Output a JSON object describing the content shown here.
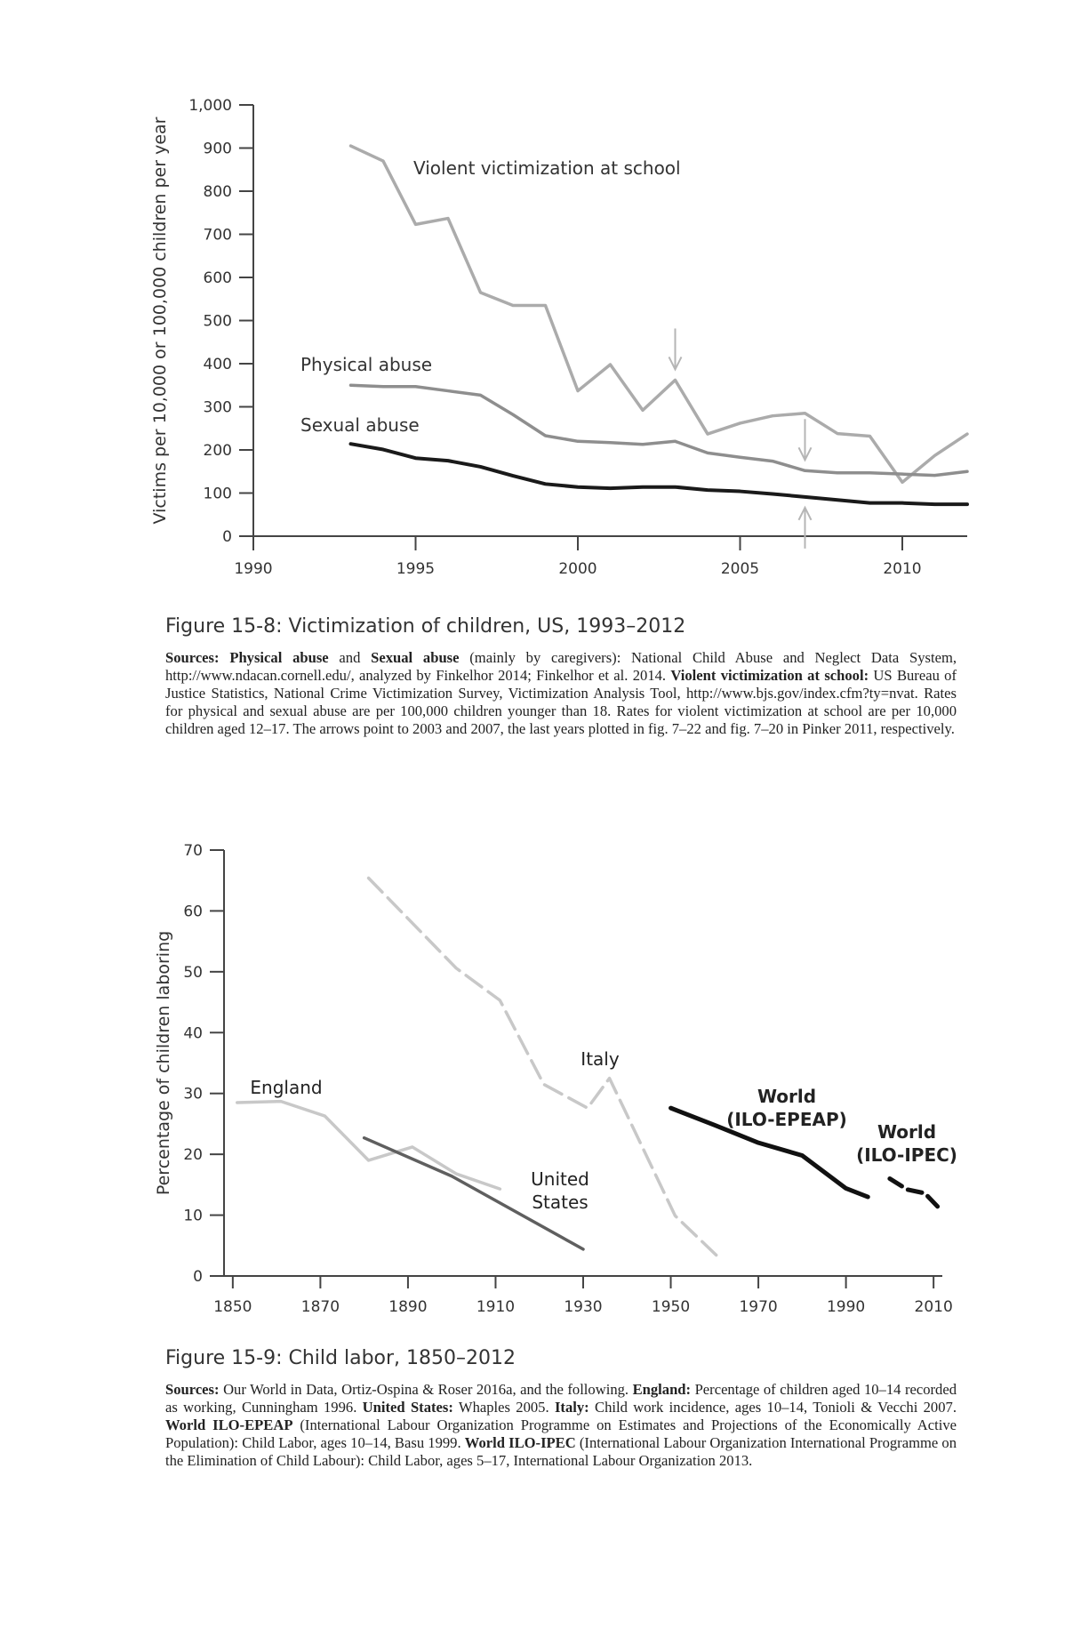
{
  "chart_data": [
    {
      "type": "line",
      "x": [
        1993,
        1994,
        1995,
        1996,
        1997,
        1998,
        1999,
        2000,
        2001,
        2002,
        2003,
        2004,
        2005,
        2006,
        2007,
        2008,
        2009,
        2010,
        2011,
        2012
      ],
      "series": [
        {
          "name": "Violent victimization at school",
          "color": "#ababab",
          "values": [
            905,
            870,
            723,
            737,
            565,
            535,
            535,
            337,
            398,
            292,
            362,
            237,
            262,
            279,
            285,
            238,
            232,
            125,
            187,
            237
          ]
        },
        {
          "name": "Physical abuse",
          "color": "#8e8e8e",
          "values": [
            350,
            347,
            347,
            337,
            327,
            282,
            233,
            220,
            217,
            213,
            220,
            193,
            183,
            174,
            152,
            147,
            147,
            144,
            141,
            150
          ]
        },
        {
          "name": "Sexual abuse",
          "color": "#1a1a1a",
          "values": [
            214,
            201,
            181,
            175,
            161,
            140,
            121,
            114,
            111,
            114,
            114,
            107,
            104,
            98,
            91,
            84,
            77,
            77,
            74,
            74
          ]
        }
      ],
      "arrows": [
        {
          "year": 2003,
          "direction": "down",
          "target": "Violent victimization at school"
        },
        {
          "year": 2007,
          "direction": "down",
          "target": "Physical abuse"
        },
        {
          "year": 2007,
          "direction": "up",
          "target": "Sexual abuse"
        }
      ],
      "xlim": [
        1990,
        2012
      ],
      "ylim": [
        0,
        1000
      ],
      "xticks": [
        1990,
        1995,
        2000,
        2005,
        2010
      ],
      "yticks": [
        0,
        100,
        200,
        300,
        400,
        500,
        600,
        700,
        800,
        900,
        1000
      ],
      "ytick_labels": [
        "0",
        "100",
        "200",
        "300",
        "400",
        "500",
        "600",
        "700",
        "800",
        "900",
        "1,000"
      ],
      "ylabel": "Victims per 10,000 or 100,000 children per year",
      "xlabel": "",
      "grid": false
    },
    {
      "type": "line",
      "series": [
        {
          "name": "England",
          "color": "#c8c8c8",
          "style": "solid",
          "x": [
            1851,
            1861,
            1871,
            1881,
            1891,
            1901,
            1911
          ],
          "values": [
            28.5,
            28.7,
            26.3,
            19,
            21.2,
            16.8,
            14.3
          ]
        },
        {
          "name": "United States",
          "color": "#5f5f5f",
          "style": "solid",
          "x": [
            1880,
            1900,
            1930
          ],
          "values": [
            22.7,
            16.4,
            4.4
          ]
        },
        {
          "name": "Italy",
          "color": "#c8c8c8",
          "style": "dashed",
          "x": [
            1881,
            1901,
            1911,
            1921,
            1931,
            1936,
            1951,
            1961
          ],
          "values": [
            65.4,
            50.6,
            45.3,
            31.5,
            27.6,
            32.5,
            9.9,
            3.0
          ]
        },
        {
          "name": "World (ILO-EPEAP)",
          "color": "#111111",
          "style": "solid",
          "x": [
            1950,
            1960,
            1970,
            1980,
            1990,
            1995
          ],
          "values": [
            27.6,
            24.8,
            21.9,
            19.8,
            14.4,
            13.0
          ]
        },
        {
          "name": "World (ILO-IPEC)",
          "color": "#111111",
          "style": "dashed",
          "x": [
            2000,
            2004,
            2008,
            2012
          ],
          "values": [
            16,
            14.2,
            13.6,
            10.6
          ]
        }
      ],
      "xlim": [
        1848,
        2012
      ],
      "ylim": [
        0,
        70
      ],
      "xticks": [
        1850,
        1870,
        1890,
        1910,
        1930,
        1950,
        1970,
        1990,
        2010
      ],
      "yticks": [
        0,
        10,
        20,
        30,
        40,
        50,
        60,
        70
      ],
      "ylabel": "Percentage of children laboring",
      "xlabel": "",
      "grid": false
    }
  ],
  "captions": {
    "fig1": {
      "title": "Figure 15-8: Victimization of children, US, 1993–2012",
      "l1": "Sources:",
      "l2": "Physical abuse",
      "l3": " and ",
      "l4": "Sexual abuse",
      "l5": " (mainly by caregivers): National Child Abuse and Neglect Data System,  http://www.ndacan.cornell.edu/, analyzed by Finkelhor 2014; Finkelhor et al. 2014. ",
      "l6": "Violent victimization at school:",
      "l7": " US Bureau of Justice Statistics, National Crime Victimization Survey, Victimization Analysis Tool, http://www.bjs.gov/index.cfm?ty=nvat. Rates for physical and sexual abuse are per 100,000 children younger than 18. Rates for violent victimization at school are per 10,000 children aged 12–17. The arrows point to 2003 and 2007, the last years plotted in fig. 7–22 and fig. 7–20 in Pinker 2011, respectively."
    },
    "fig2": {
      "title": "Figure 15-9: Child labor, 1850–2012",
      "l1": "Sources:",
      "l2": " Our World in Data, Ortiz-Ospina & Roser 2016a, and the following. ",
      "l3": "England:",
      "l4": " Percentage of children aged 10–14 recorded as working, Cunningham 1996. ",
      "l5": "United States:",
      "l6": " Whaples 2005. ",
      "l7": "Italy:",
      "l8": " Child work incidence, ages 10–14, Tonioli & Vecchi 2007. ",
      "l9": "World ILO-EPEAP",
      "l10": " (International Labour Organization Programme on Estimates and Projections of the Economically Active Population): Child Labor, ages 10–14, Basu 1999. ",
      "l11": "World ILO-IPEC",
      "l12": " (International Labour Organization International Programme on the Elimination of Child Labour): Child Labor, ages 5–17, International Labour Organization 2013."
    }
  }
}
